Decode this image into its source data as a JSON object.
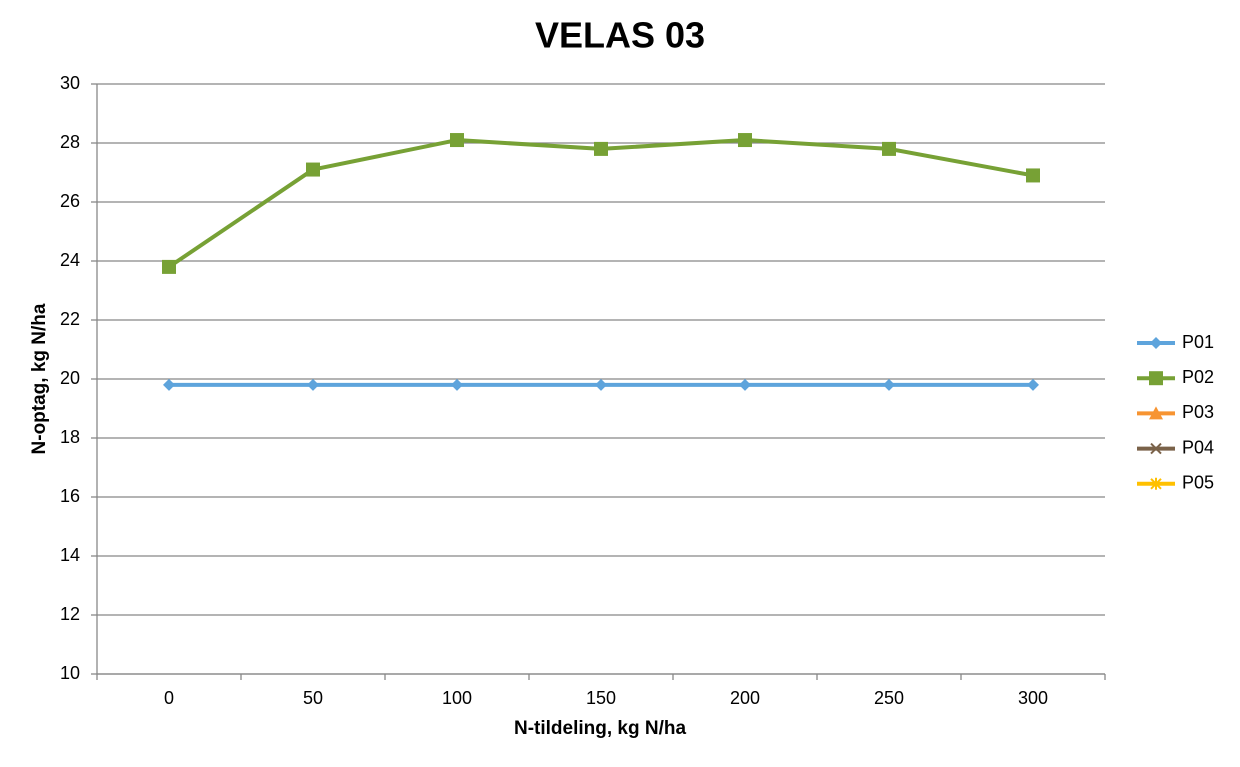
{
  "chart_data": {
    "type": "line",
    "title": "VELAS 03",
    "x_label": "N-tildeling, kg N/ha",
    "y_label": "N-optag, kg N/ha",
    "categories": [
      "0",
      "50",
      "100",
      "150",
      "200",
      "250",
      "300"
    ],
    "series": [
      {
        "name": "P01",
        "color": "#5ea4dc",
        "marker": "diamond",
        "values": [
          19.8,
          19.8,
          19.8,
          19.8,
          19.8,
          19.8,
          19.8
        ]
      },
      {
        "name": "P02",
        "color": "#77a135",
        "marker": "square",
        "values": [
          23.8,
          27.1,
          28.1,
          27.8,
          28.1,
          27.8,
          26.9
        ]
      },
      {
        "name": "P03",
        "color": "#f79431",
        "marker": "triangle",
        "values": [
          null,
          null,
          null,
          null,
          null,
          null,
          null
        ]
      },
      {
        "name": "P04",
        "color": "#7a6249",
        "marker": "x",
        "values": [
          null,
          null,
          null,
          null,
          null,
          null,
          null
        ]
      },
      {
        "name": "P05",
        "color": "#ffc000",
        "marker": "star",
        "values": [
          null,
          null,
          null,
          null,
          null,
          null,
          null
        ]
      }
    ],
    "ylim": [
      10,
      30
    ],
    "yticks": [
      10,
      12,
      14,
      16,
      18,
      20,
      22,
      24,
      26,
      28,
      30
    ],
    "grid": true,
    "legend": "right"
  }
}
